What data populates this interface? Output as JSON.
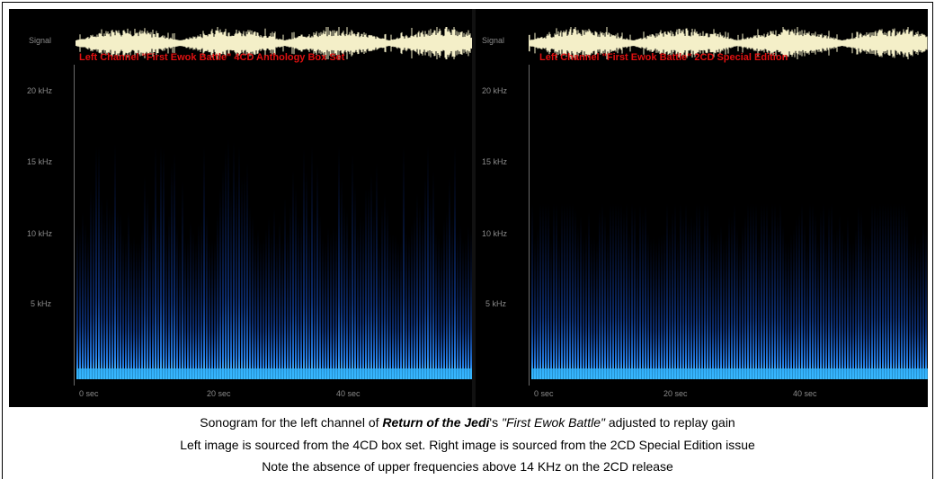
{
  "panels": {
    "left": {
      "signal_label": "Signal",
      "title": "Left Channel \"First Ewok Battle\" 4CD Anthology Box Set",
      "y_labels": [
        "20 kHz",
        "15 kHz",
        "10 kHz",
        "5 kHz"
      ],
      "x_labels": [
        "0 sec",
        "20 sec",
        "40 sec"
      ]
    },
    "right": {
      "signal_label": "Signal",
      "title": "Left Channel \"First Ewok Battle\" 2CD Special Edition",
      "y_labels": [
        "20 kHz",
        "15 kHz",
        "10 kHz",
        "5 kHz"
      ],
      "x_labels": [
        "0 sec",
        "20 sec",
        "40 sec"
      ]
    }
  },
  "caption": {
    "line1_a": "Sonogram for the left channel of ",
    "line1_title": "Return of the Jedi",
    "line1_b": "'s ",
    "line1_track": "\"First Ewok Battle\"",
    "line1_c": " adjusted to replay gain",
    "line2": "Left image is sourced from the 4CD box set. Right image is sourced from the 2CD Special Edition issue",
    "line3": "Note the absence of upper frequencies above 14 KHz on the 2CD release"
  },
  "colors": {
    "background": "#000000",
    "waveform": "#f4efc8",
    "title": "#e01010",
    "spectrum_base": "#3fa8ff",
    "spectrum_dim": "#0a2a7a"
  }
}
